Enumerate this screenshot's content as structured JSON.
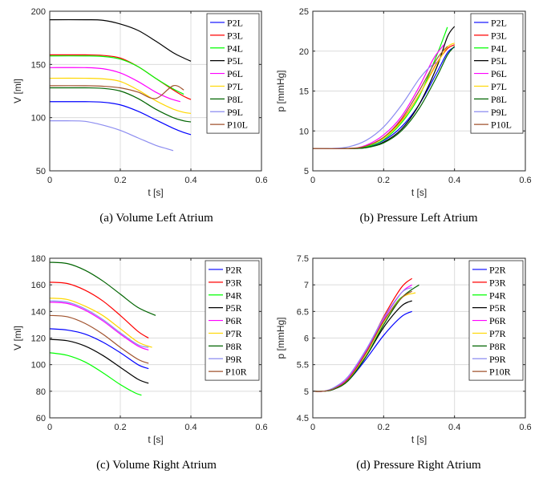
{
  "chart_data": [
    {
      "type": "line",
      "caption": "(a) Volume Left Atrium",
      "xlabel": "t [s]",
      "ylabel": "V [ml]",
      "xlim": [
        0,
        0.6
      ],
      "ylim": [
        50,
        200
      ],
      "xticks": [
        0,
        0.2,
        0.4,
        0.6
      ],
      "xtick_labels": [
        "0",
        "0.2",
        "0.4",
        "0.6"
      ],
      "yticks": [
        50,
        100,
        150,
        200
      ],
      "ytick_labels": [
        "50",
        "100",
        "150",
        "200"
      ],
      "grid": true,
      "legend_position": "top-right",
      "series": [
        {
          "name": "P2L",
          "color": "#0000ff",
          "x": [
            0,
            0.1,
            0.15,
            0.2,
            0.25,
            0.3,
            0.35,
            0.38,
            0.4
          ],
          "y": [
            115,
            115,
            114.5,
            112,
            106,
            98,
            90,
            86,
            84
          ]
        },
        {
          "name": "P3L",
          "color": "#ff0000",
          "x": [
            0,
            0.1,
            0.15,
            0.2,
            0.25,
            0.3,
            0.35,
            0.38,
            0.4
          ],
          "y": [
            159,
            159,
            158.5,
            156,
            148,
            137,
            126,
            120,
            117
          ]
        },
        {
          "name": "P4L",
          "color": "#00ff00",
          "x": [
            0,
            0.1,
            0.15,
            0.2,
            0.25,
            0.3,
            0.35,
            0.38
          ],
          "y": [
            158,
            158,
            157.5,
            155,
            148,
            137,
            127,
            122
          ]
        },
        {
          "name": "P5L",
          "color": "#000000",
          "x": [
            0,
            0.1,
            0.15,
            0.2,
            0.25,
            0.3,
            0.35,
            0.38,
            0.4
          ],
          "y": [
            192,
            192,
            191.5,
            188,
            182,
            172,
            161,
            156,
            153
          ]
        },
        {
          "name": "P6L",
          "color": "#ff00ff",
          "x": [
            0,
            0.1,
            0.15,
            0.2,
            0.25,
            0.3,
            0.34,
            0.37
          ],
          "y": [
            147,
            147,
            146,
            142,
            134,
            124,
            118,
            115
          ]
        },
        {
          "name": "P7L",
          "color": "#ffd700",
          "x": [
            0,
            0.1,
            0.15,
            0.2,
            0.25,
            0.3,
            0.35,
            0.38,
            0.4
          ],
          "y": [
            137,
            137,
            136.5,
            134,
            126,
            116,
            108,
            105,
            104
          ]
        },
        {
          "name": "P8L",
          "color": "#006400",
          "x": [
            0,
            0.1,
            0.15,
            0.2,
            0.25,
            0.3,
            0.35,
            0.38,
            0.4
          ],
          "y": [
            128,
            128,
            127.5,
            125,
            118,
            108,
            100,
            97,
            96
          ]
        },
        {
          "name": "P9L",
          "color": "#8c8cf0",
          "x": [
            0,
            0.05,
            0.1,
            0.15,
            0.2,
            0.25,
            0.3,
            0.33,
            0.35
          ],
          "y": [
            97,
            97,
            96.5,
            93,
            88,
            81,
            74,
            71,
            69
          ]
        },
        {
          "name": "P10L",
          "color": "#a0522d",
          "x": [
            0,
            0.1,
            0.15,
            0.2,
            0.25,
            0.3,
            0.35,
            0.38
          ],
          "y": [
            130,
            130,
            129.5,
            128,
            124,
            118,
            130,
            126
          ]
        }
      ]
    },
    {
      "type": "line",
      "caption": "(b) Pressure Left Atrium",
      "xlabel": "t [s]",
      "ylabel": "p [mmHg]",
      "xlim": [
        0,
        0.6
      ],
      "ylim": [
        5,
        25
      ],
      "xticks": [
        0,
        0.2,
        0.4,
        0.6
      ],
      "xtick_labels": [
        "0",
        "0.2",
        "0.4",
        "0.6"
      ],
      "yticks": [
        5,
        10,
        15,
        20,
        25
      ],
      "ytick_labels": [
        "5",
        "10",
        "15",
        "20",
        "25"
      ],
      "grid": true,
      "legend_position": "top-right",
      "series": [
        {
          "name": "P2L",
          "color": "#0000ff",
          "x": [
            0,
            0.1,
            0.15,
            0.2,
            0.25,
            0.3,
            0.35,
            0.38,
            0.4
          ],
          "y": [
            7.8,
            7.8,
            8.0,
            8.8,
            10.5,
            13.3,
            17.3,
            19.8,
            20.5
          ]
        },
        {
          "name": "P3L",
          "color": "#ff0000",
          "x": [
            0,
            0.1,
            0.15,
            0.2,
            0.25,
            0.3,
            0.35,
            0.38,
            0.4
          ],
          "y": [
            7.8,
            7.8,
            8.1,
            9.2,
            11.3,
            14.5,
            18.5,
            20.3,
            20.8
          ]
        },
        {
          "name": "P4L",
          "color": "#00ff00",
          "x": [
            0,
            0.1,
            0.15,
            0.2,
            0.25,
            0.3,
            0.35,
            0.38
          ],
          "y": [
            7.8,
            7.8,
            8.0,
            8.9,
            11.0,
            14.3,
            19.5,
            23.0
          ]
        },
        {
          "name": "P5L",
          "color": "#000000",
          "x": [
            0,
            0.1,
            0.15,
            0.2,
            0.25,
            0.3,
            0.35,
            0.38,
            0.4
          ],
          "y": [
            7.8,
            7.8,
            7.9,
            8.6,
            10.2,
            13.3,
            18.0,
            21.8,
            23.1
          ]
        },
        {
          "name": "P6L",
          "color": "#ff00ff",
          "x": [
            0,
            0.1,
            0.15,
            0.2,
            0.25,
            0.3,
            0.34,
            0.37
          ],
          "y": [
            7.8,
            7.8,
            8.2,
            9.5,
            11.8,
            15.5,
            19.0,
            20.8
          ]
        },
        {
          "name": "P7L",
          "color": "#ffd700",
          "x": [
            0,
            0.1,
            0.15,
            0.2,
            0.25,
            0.3,
            0.35,
            0.38,
            0.4
          ],
          "y": [
            7.8,
            7.8,
            8.1,
            9.1,
            11.2,
            14.5,
            18.4,
            20.5,
            21.0
          ]
        },
        {
          "name": "P8L",
          "color": "#006400",
          "x": [
            0,
            0.1,
            0.15,
            0.2,
            0.25,
            0.3,
            0.35,
            0.38,
            0.4
          ],
          "y": [
            7.8,
            7.8,
            7.9,
            8.5,
            10.0,
            12.8,
            16.8,
            19.5,
            20.6
          ]
        },
        {
          "name": "P9L",
          "color": "#8c8cf0",
          "x": [
            0,
            0.05,
            0.1,
            0.15,
            0.2,
            0.25,
            0.3,
            0.33,
            0.35
          ],
          "y": [
            7.8,
            7.8,
            8.0,
            8.8,
            10.5,
            13.2,
            16.5,
            18.0,
            18.6
          ]
        },
        {
          "name": "P10L",
          "color": "#a0522d",
          "x": [
            0,
            0.1,
            0.15,
            0.2,
            0.25,
            0.3,
            0.35,
            0.38
          ],
          "y": [
            7.8,
            7.8,
            8.1,
            9.2,
            11.5,
            15.0,
            19.0,
            20.6
          ]
        }
      ]
    },
    {
      "type": "line",
      "caption": "(c) Volume Right Atrium",
      "xlabel": "t [s]",
      "ylabel": "V [ml]",
      "xlim": [
        0,
        0.6
      ],
      "ylim": [
        60,
        180
      ],
      "xticks": [
        0,
        0.2,
        0.4,
        0.6
      ],
      "xtick_labels": [
        "0",
        "0.2",
        "0.4",
        "0.6"
      ],
      "yticks": [
        60,
        80,
        100,
        120,
        140,
        160,
        180
      ],
      "ytick_labels": [
        "60",
        "80",
        "100",
        "120",
        "140",
        "160",
        "180"
      ],
      "grid": true,
      "legend_position": "top-right",
      "series": [
        {
          "name": "P2R",
          "color": "#0000ff",
          "x": [
            0,
            0.05,
            0.1,
            0.15,
            0.2,
            0.25,
            0.28
          ],
          "y": [
            127,
            126,
            123,
            117,
            109,
            100,
            97
          ]
        },
        {
          "name": "P3R",
          "color": "#ff0000",
          "x": [
            0,
            0.05,
            0.1,
            0.15,
            0.2,
            0.25,
            0.28
          ],
          "y": [
            162,
            161,
            156,
            148,
            137,
            125,
            120
          ]
        },
        {
          "name": "P4R",
          "color": "#00ff00",
          "x": [
            0,
            0.05,
            0.1,
            0.15,
            0.2,
            0.24,
            0.26
          ],
          "y": [
            109,
            107,
            102,
            94,
            85,
            79,
            77
          ]
        },
        {
          "name": "P5R",
          "color": "#000000",
          "x": [
            0,
            0.05,
            0.1,
            0.15,
            0.2,
            0.25,
            0.28
          ],
          "y": [
            119,
            118,
            114,
            107,
            98,
            89,
            86
          ]
        },
        {
          "name": "P6R",
          "color": "#ff00ff",
          "x": [
            0,
            0.05,
            0.1,
            0.15,
            0.2,
            0.25,
            0.28
          ],
          "y": [
            147,
            146,
            141,
            133,
            123,
            114,
            111
          ]
        },
        {
          "name": "P7R",
          "color": "#ffd700",
          "x": [
            0,
            0.05,
            0.1,
            0.15,
            0.2,
            0.25,
            0.29
          ],
          "y": [
            150,
            149,
            144,
            137,
            127,
            117,
            113
          ]
        },
        {
          "name": "P8R",
          "color": "#006400",
          "x": [
            0,
            0.05,
            0.1,
            0.15,
            0.2,
            0.25,
            0.3
          ],
          "y": [
            177,
            176,
            171,
            163,
            153,
            143,
            137
          ]
        },
        {
          "name": "P9R",
          "color": "#8c8cf0",
          "x": [
            0,
            0.05,
            0.1,
            0.15,
            0.2,
            0.25,
            0.28
          ],
          "y": [
            148,
            147,
            142,
            134,
            124,
            115,
            113
          ]
        },
        {
          "name": "P10R",
          "color": "#a0522d",
          "x": [
            0,
            0.05,
            0.1,
            0.15,
            0.2,
            0.25,
            0.28
          ],
          "y": [
            137,
            136,
            131,
            123,
            113,
            104,
            101
          ]
        }
      ]
    },
    {
      "type": "line",
      "caption": "(d) Pressure Right Atrium",
      "xlabel": "t [s]",
      "ylabel": "p [mmHg]",
      "xlim": [
        0,
        0.6
      ],
      "ylim": [
        4.5,
        7.5
      ],
      "xticks": [
        0,
        0.2,
        0.4,
        0.6
      ],
      "xtick_labels": [
        "0",
        "0.2",
        "0.4",
        "0.6"
      ],
      "yticks": [
        4.5,
        5,
        5.5,
        6,
        6.5,
        7,
        7.5
      ],
      "ytick_labels": [
        "4.5",
        "5",
        "5.5",
        "6",
        "6.5",
        "7",
        "7.5"
      ],
      "grid": true,
      "legend_position": "top-right",
      "series": [
        {
          "name": "P2R",
          "color": "#0000ff",
          "x": [
            0,
            0.03,
            0.06,
            0.1,
            0.15,
            0.2,
            0.25,
            0.28
          ],
          "y": [
            5.0,
            5.0,
            5.05,
            5.2,
            5.6,
            6.05,
            6.4,
            6.5
          ]
        },
        {
          "name": "P3R",
          "color": "#ff0000",
          "x": [
            0,
            0.03,
            0.06,
            0.1,
            0.15,
            0.2,
            0.25,
            0.28
          ],
          "y": [
            5.0,
            5.0,
            5.06,
            5.25,
            5.75,
            6.4,
            6.95,
            7.12
          ]
        },
        {
          "name": "P4R",
          "color": "#00ff00",
          "x": [
            0,
            0.03,
            0.06,
            0.1,
            0.15,
            0.2,
            0.24,
            0.26
          ],
          "y": [
            5.0,
            5.0,
            5.05,
            5.22,
            5.7,
            6.3,
            6.7,
            6.8
          ]
        },
        {
          "name": "P5R",
          "color": "#000000",
          "x": [
            0,
            0.03,
            0.06,
            0.1,
            0.15,
            0.2,
            0.25,
            0.28
          ],
          "y": [
            5.0,
            5.0,
            5.04,
            5.2,
            5.65,
            6.2,
            6.6,
            6.7
          ]
        },
        {
          "name": "P6R",
          "color": "#ff00ff",
          "x": [
            0,
            0.03,
            0.06,
            0.1,
            0.15,
            0.2,
            0.25,
            0.28
          ],
          "y": [
            5.0,
            5.0,
            5.06,
            5.25,
            5.75,
            6.35,
            6.85,
            7.0
          ]
        },
        {
          "name": "P7R",
          "color": "#ffd700",
          "x": [
            0,
            0.03,
            0.06,
            0.1,
            0.15,
            0.2,
            0.25,
            0.29
          ],
          "y": [
            5.0,
            5.0,
            5.05,
            5.22,
            5.7,
            6.3,
            6.75,
            6.85
          ]
        },
        {
          "name": "P8R",
          "color": "#006400",
          "x": [
            0,
            0.03,
            0.06,
            0.1,
            0.15,
            0.2,
            0.25,
            0.3
          ],
          "y": [
            5.0,
            5.0,
            5.04,
            5.2,
            5.65,
            6.25,
            6.75,
            7.0
          ]
        },
        {
          "name": "P9R",
          "color": "#8c8cf0",
          "x": [
            0,
            0.03,
            0.06,
            0.1,
            0.15,
            0.2,
            0.25,
            0.28
          ],
          "y": [
            5.0,
            5.0,
            5.07,
            5.28,
            5.78,
            6.38,
            6.85,
            6.95
          ]
        },
        {
          "name": "P10R",
          "color": "#a0522d",
          "x": [
            0,
            0.03,
            0.06,
            0.1,
            0.15,
            0.2,
            0.25,
            0.28
          ],
          "y": [
            5.0,
            5.0,
            5.05,
            5.23,
            5.72,
            6.32,
            6.75,
            6.88
          ]
        }
      ]
    }
  ]
}
